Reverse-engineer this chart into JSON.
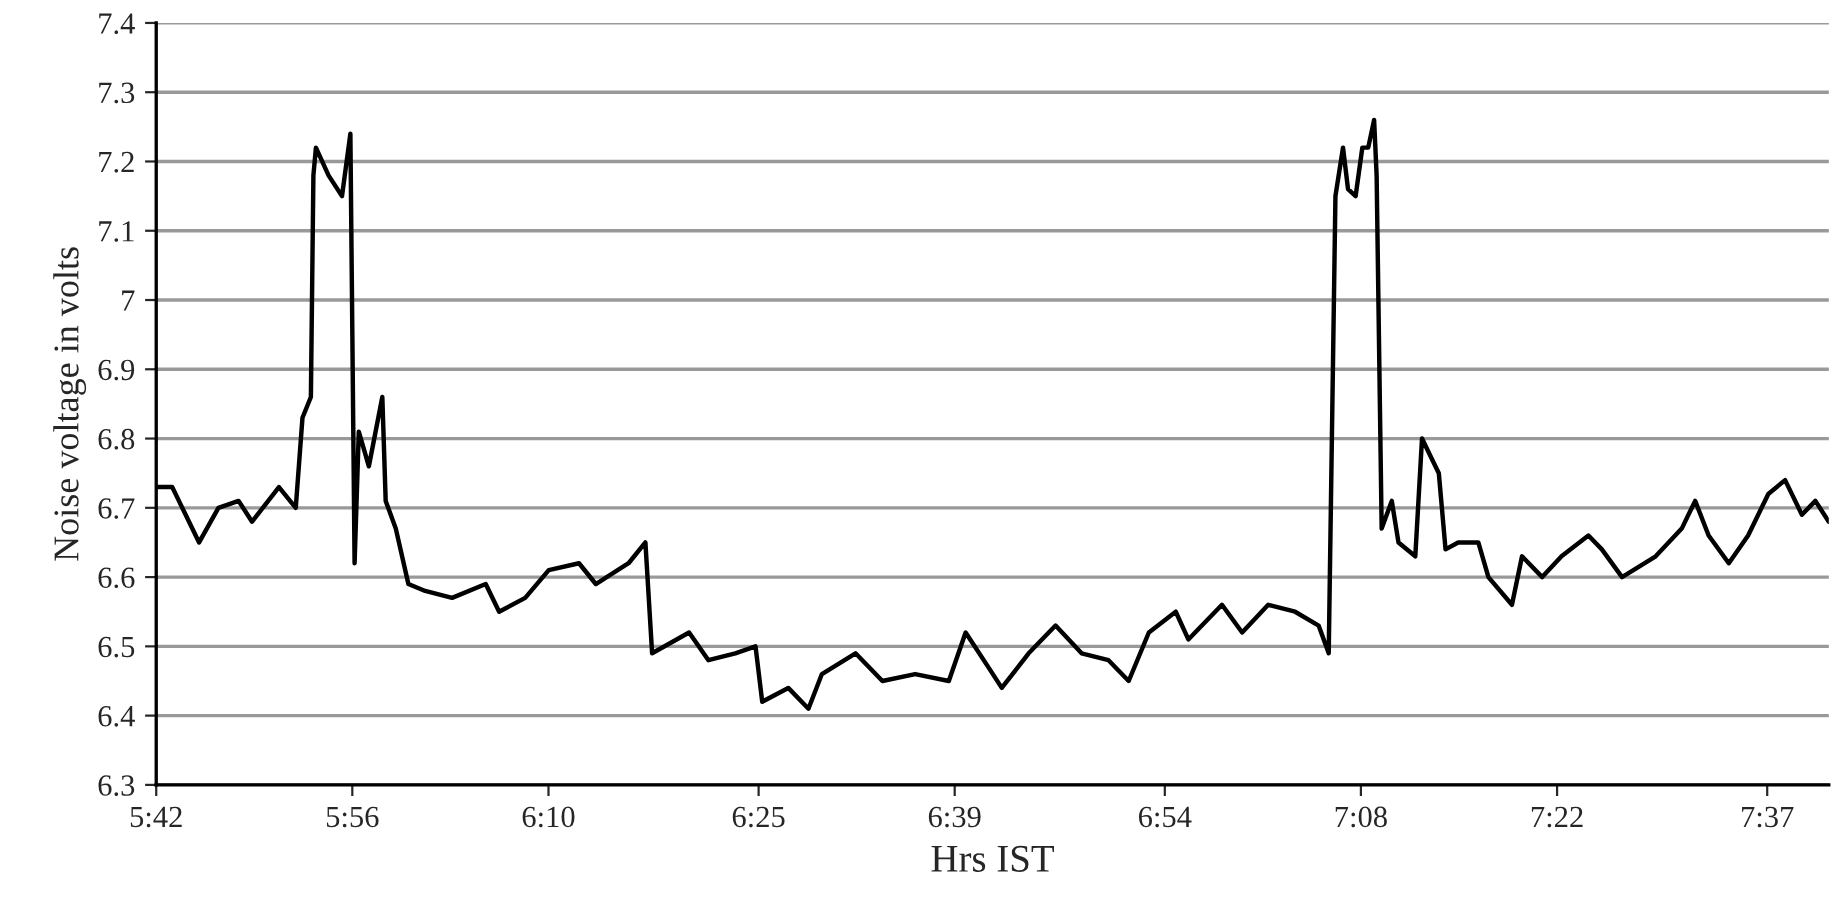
{
  "chart_data": {
    "type": "line",
    "xlabel": "Hrs IST",
    "ylabel": "Noise voltage in volts",
    "xlim": [
      5.7,
      7.69
    ],
    "ylim": [
      6.3,
      7.4
    ],
    "xticks": [
      {
        "value": 5.7,
        "label": "5:42"
      },
      {
        "value": 5.9333,
        "label": "5:56"
      },
      {
        "value": 6.1667,
        "label": "6:10"
      },
      {
        "value": 6.4167,
        "label": "6:25"
      },
      {
        "value": 6.65,
        "label": "6:39"
      },
      {
        "value": 6.9,
        "label": "6:54"
      },
      {
        "value": 7.1333,
        "label": "7:08"
      },
      {
        "value": 7.3667,
        "label": "7:22"
      },
      {
        "value": 7.6167,
        "label": "7:37"
      }
    ],
    "yticks": [
      6.3,
      6.4,
      6.5,
      6.6,
      6.7,
      6.8,
      6.9,
      7,
      7.1,
      7.2,
      7.3,
      7.4
    ],
    "grid": "y",
    "marker": "none",
    "line_style": "solid",
    "series": [
      {
        "color": "#000000",
        "x": [
          5.7,
          5.719,
          5.727,
          5.751,
          5.774,
          5.798,
          5.814,
          5.846,
          5.866,
          5.874,
          5.884,
          5.887,
          5.89,
          5.905,
          5.921,
          5.931,
          5.936,
          5.941,
          5.953,
          5.969,
          5.973,
          5.985,
          6.0,
          6.02,
          6.052,
          6.092,
          6.108,
          6.139,
          6.167,
          6.203,
          6.223,
          6.262,
          6.282,
          6.29,
          6.334,
          6.357,
          6.389,
          6.413,
          6.421,
          6.452,
          6.476,
          6.492,
          6.532,
          6.564,
          6.603,
          6.643,
          6.663,
          6.69,
          6.706,
          6.738,
          6.77,
          6.801,
          6.833,
          6.857,
          6.881,
          6.913,
          6.928,
          6.968,
          6.992,
          7.023,
          7.055,
          7.083,
          7.095,
          7.103,
          7.112,
          7.118,
          7.127,
          7.135,
          7.142,
          7.149,
          7.152,
          7.158,
          7.17,
          7.178,
          7.198,
          7.206,
          7.214,
          7.226,
          7.234,
          7.249,
          7.273,
          7.285,
          7.313,
          7.325,
          7.349,
          7.372,
          7.404,
          7.42,
          7.444,
          7.484,
          7.515,
          7.531,
          7.547,
          7.571,
          7.594,
          7.618,
          7.638,
          7.658,
          7.674,
          7.69
        ],
        "values": [
          6.73,
          6.73,
          6.71,
          6.65,
          6.7,
          6.71,
          6.68,
          6.73,
          6.7,
          6.83,
          6.86,
          7.18,
          7.22,
          7.18,
          7.15,
          7.24,
          6.62,
          6.81,
          6.76,
          6.86,
          6.71,
          6.67,
          6.59,
          6.58,
          6.57,
          6.59,
          6.55,
          6.57,
          6.61,
          6.62,
          6.59,
          6.62,
          6.65,
          6.49,
          6.52,
          6.48,
          6.49,
          6.5,
          6.42,
          6.44,
          6.41,
          6.46,
          6.49,
          6.45,
          6.46,
          6.45,
          6.52,
          6.47,
          6.44,
          6.49,
          6.53,
          6.49,
          6.48,
          6.45,
          6.52,
          6.55,
          6.51,
          6.56,
          6.52,
          6.56,
          6.55,
          6.53,
          6.49,
          7.15,
          7.22,
          7.16,
          7.15,
          7.22,
          7.22,
          7.26,
          7.18,
          6.67,
          6.71,
          6.65,
          6.63,
          6.8,
          6.78,
          6.75,
          6.64,
          6.65,
          6.65,
          6.6,
          6.56,
          6.63,
          6.6,
          6.63,
          6.66,
          6.64,
          6.6,
          6.63,
          6.67,
          6.71,
          6.66,
          6.62,
          6.66,
          6.72,
          6.74,
          6.69,
          6.71,
          6.68
        ]
      }
    ]
  }
}
